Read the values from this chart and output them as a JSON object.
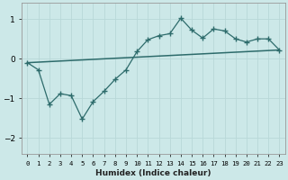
{
  "xlabel": "Humidex (Indice chaleur)",
  "background_color": "#cce8e8",
  "grid_color": "#b8d8d8",
  "line_color": "#2d6b6b",
  "xlim": [
    -0.5,
    23.5
  ],
  "ylim": [
    -2.4,
    1.4
  ],
  "yticks": [
    -2,
    -1,
    0,
    1
  ],
  "xticks": [
    0,
    1,
    2,
    3,
    4,
    5,
    6,
    7,
    8,
    9,
    10,
    11,
    12,
    13,
    14,
    15,
    16,
    17,
    18,
    19,
    20,
    21,
    22,
    23
  ],
  "trend_x": [
    0,
    23
  ],
  "trend_y": [
    -0.1,
    0.22
  ],
  "jagged_x": [
    0,
    1,
    2,
    3,
    4,
    5,
    6,
    7,
    8,
    9,
    10,
    11,
    12,
    13,
    14,
    15,
    16,
    17,
    18,
    19,
    20,
    21,
    22,
    23
  ],
  "jagged_y": [
    -0.1,
    -0.28,
    -1.15,
    -0.88,
    -0.93,
    -1.52,
    -1.08,
    -0.82,
    -0.52,
    -0.28,
    0.18,
    0.48,
    0.58,
    0.63,
    1.02,
    0.72,
    0.52,
    0.75,
    0.7,
    0.5,
    0.42,
    0.5,
    0.5,
    0.22
  ]
}
